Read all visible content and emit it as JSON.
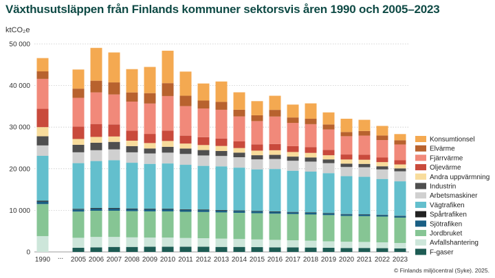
{
  "title": "Växthusutsläppen från Finlands kommuner sektorsvis åren 1990 och 2005–2023",
  "unit": "ktCO₂e",
  "credit": "© Finlands miljöcentral (Syke). 2025.",
  "chart_data": {
    "type": "bar",
    "stacked": true,
    "title": "Växthusutsläppen från Finlands kommuner sektorsvis åren 1990 och 2005–2023",
    "ylabel": "ktCO₂e",
    "ylim": [
      0,
      50000
    ],
    "yticks": [
      0,
      10000,
      20000,
      30000,
      40000,
      50000
    ],
    "ytick_labels": [
      "0",
      "10 000",
      "20 000",
      "30 000",
      "40 000",
      "50 000"
    ],
    "grid": "horizontal dotted",
    "legend_position": "right",
    "categories": [
      "1990",
      "...",
      "2005",
      "2006",
      "2007",
      "2008",
      "2009",
      "2010",
      "2011",
      "2012",
      "2013",
      "2014",
      "2015",
      "2016",
      "2017",
      "2018",
      "2019",
      "2020",
      "2021",
      "2022",
      "2023"
    ],
    "series": [
      {
        "name": "F-gaser",
        "color": "#1e5c54",
        "values": [
          0,
          null,
          1000,
          1100,
          1200,
          1200,
          1250,
          1250,
          1250,
          1250,
          1200,
          1200,
          1150,
          1100,
          1100,
          1050,
          1000,
          950,
          950,
          900,
          850
        ]
      },
      {
        "name": "Avfallshantering",
        "color": "#cde6da",
        "values": [
          3800,
          null,
          2400,
          2500,
          2400,
          2300,
          2200,
          2200,
          2100,
          2050,
          2000,
          1900,
          1850,
          1800,
          1700,
          1650,
          1550,
          1500,
          1450,
          1400,
          1300
        ]
      },
      {
        "name": "Jordbruket",
        "color": "#86c594",
        "values": [
          7700,
          null,
          6300,
          6300,
          6300,
          6300,
          6300,
          6300,
          6300,
          6300,
          6300,
          6300,
          6300,
          6300,
          6300,
          6300,
          6300,
          6200,
          6200,
          6200,
          6100
        ]
      },
      {
        "name": "Sjötrafiken",
        "color": "#1a5f84",
        "values": [
          600,
          null,
          500,
          500,
          500,
          500,
          480,
          480,
          470,
          460,
          450,
          450,
          440,
          430,
          420,
          410,
          400,
          390,
          380,
          370,
          360
        ]
      },
      {
        "name": "Spårtrafiken",
        "color": "#222222",
        "values": [
          200,
          null,
          150,
          150,
          150,
          140,
          140,
          140,
          130,
          130,
          120,
          120,
          110,
          110,
          100,
          100,
          90,
          80,
          80,
          70,
          70
        ]
      },
      {
        "name": "Vägtrafiken",
        "color": "#63bfcd",
        "values": [
          10800,
          null,
          11000,
          11300,
          11500,
          11000,
          10800,
          10900,
          10700,
          10500,
          10500,
          10300,
          10000,
          10200,
          9900,
          9800,
          9600,
          9100,
          9000,
          8600,
          8300
        ]
      },
      {
        "name": "Arbetsmaskiner",
        "color": "#d0d0d0",
        "values": [
          2500,
          null,
          2600,
          2600,
          2600,
          2500,
          2500,
          2600,
          2600,
          2500,
          2500,
          2500,
          2400,
          2400,
          2400,
          2400,
          2400,
          2200,
          2300,
          2300,
          2400
        ]
      },
      {
        "name": "Industrin",
        "color": "#4f4f4f",
        "values": [
          2200,
          null,
          1800,
          1800,
          1800,
          1500,
          1200,
          1400,
          1300,
          1300,
          1200,
          1100,
          1000,
          1000,
          1000,
          1000,
          900,
          800,
          800,
          750,
          700
        ]
      },
      {
        "name": "Andra uppvärmning",
        "color": "#f8dc9c",
        "values": [
          2200,
          null,
          1400,
          1400,
          1300,
          1300,
          1300,
          1400,
          1200,
          1200,
          1200,
          1100,
          1100,
          1100,
          1100,
          1100,
          1000,
          1000,
          1000,
          1000,
          950
        ]
      },
      {
        "name": "Oljevärme",
        "color": "#c94a3c",
        "values": [
          4400,
          null,
          3000,
          3100,
          2900,
          2400,
          2200,
          2500,
          1900,
          1900,
          1800,
          1600,
          1500,
          1500,
          1400,
          1400,
          1300,
          1200,
          1200,
          1100,
          1000
        ]
      },
      {
        "name": "Fjärrvärme",
        "color": "#f1897a",
        "values": [
          7200,
          null,
          6900,
          7600,
          7200,
          7000,
          7300,
          8300,
          7100,
          6900,
          6900,
          6000,
          5600,
          6600,
          5600,
          5500,
          4900,
          4400,
          4600,
          4200,
          3800
        ]
      },
      {
        "name": "Elvärme",
        "color": "#b8622e",
        "values": [
          1800,
          null,
          2200,
          2800,
          2900,
          2200,
          2500,
          3100,
          2500,
          1900,
          1900,
          1600,
          1400,
          1600,
          1300,
          1300,
          1200,
          1000,
          1100,
          1100,
          1000
        ]
      },
      {
        "name": "Konsumtionsel",
        "color": "#f4a951",
        "values": [
          3200,
          null,
          4600,
          7900,
          7200,
          5600,
          6300,
          7800,
          5800,
          4100,
          4900,
          4200,
          3400,
          3400,
          3100,
          3700,
          2900,
          3200,
          2700,
          2300,
          1500
        ]
      }
    ]
  }
}
